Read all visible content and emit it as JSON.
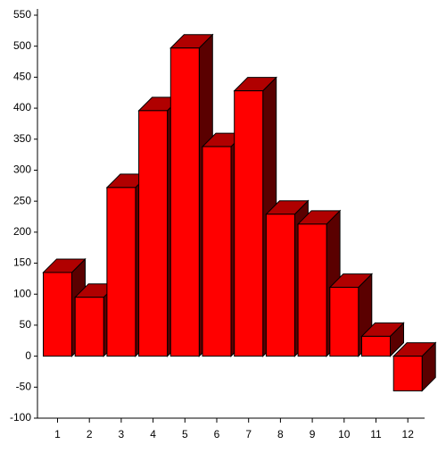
{
  "chart_data": {
    "type": "bar3d",
    "categories": [
      "1",
      "2",
      "3",
      "4",
      "5",
      "6",
      "7",
      "8",
      "9",
      "10",
      "11",
      "12"
    ],
    "values": [
      135,
      95,
      272,
      396,
      497,
      338,
      428,
      229,
      213,
      111,
      32,
      -56
    ],
    "color": "#ff0000",
    "top_color": "#b00000",
    "side_color": "#5a0000",
    "ylim": [
      -100,
      550
    ],
    "yticks": [
      -100,
      -50,
      0,
      50,
      100,
      150,
      200,
      250,
      300,
      350,
      400,
      450,
      500,
      550
    ],
    "grid": false
  }
}
